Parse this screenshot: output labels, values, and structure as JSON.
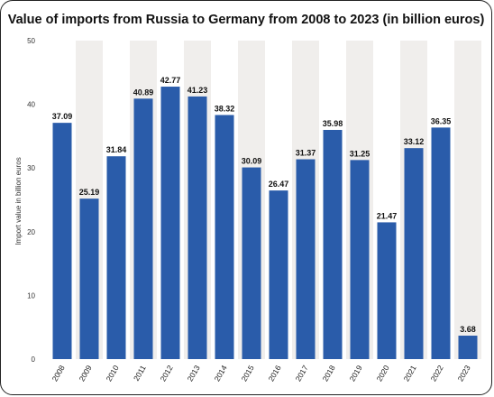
{
  "chart_data": {
    "type": "bar",
    "title": "Value of imports from Russia to Germany from 2008 to 2023 (in billion euros)",
    "xlabel": "",
    "ylabel": "Import value in billion euros",
    "categories": [
      "2008",
      "2009",
      "2010",
      "2011",
      "2012",
      "2013",
      "2014",
      "2015",
      "2016",
      "2017",
      "2018",
      "2019",
      "2020",
      "2021",
      "2022",
      "2023"
    ],
    "values": [
      37.09,
      25.19,
      31.84,
      40.89,
      42.77,
      41.23,
      38.32,
      30.09,
      26.47,
      31.37,
      35.98,
      31.25,
      21.47,
      33.12,
      36.35,
      3.68
    ],
    "value_labels": [
      "37.09",
      "25.19",
      "31.84",
      "40.89",
      "42.77",
      "41.23",
      "38.32",
      "30.09",
      "26.47",
      "31.37",
      "35.98",
      "31.25",
      "21.47",
      "33.12",
      "36.35",
      "3.68"
    ],
    "yticks": [
      "0",
      "10",
      "20",
      "30",
      "40",
      "50"
    ],
    "ylim": [
      0,
      50
    ],
    "grid": false,
    "bar_color": "#2a5caa",
    "band_color": "#f0eeec"
  }
}
